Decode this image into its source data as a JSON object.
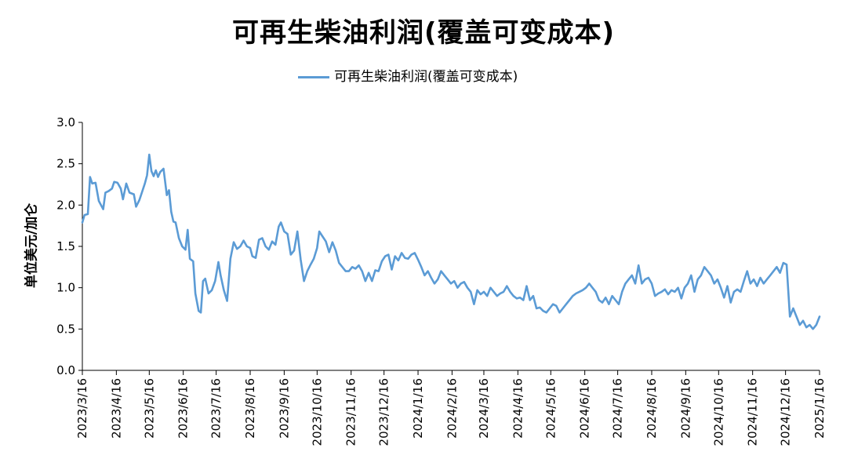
{
  "chart_data": {
    "type": "line",
    "title": "可再生柴油利润(覆盖可变成本)",
    "ylabel": "单位美元/加仑",
    "xlabel": "",
    "ylim": [
      0,
      3
    ],
    "yticks": [
      "0.0",
      "0.5",
      "1.0",
      "1.5",
      "2.0",
      "2.5",
      "3.0"
    ],
    "xticks": [
      "2023/3/16",
      "2023/4/16",
      "2023/5/16",
      "2023/6/16",
      "2023/7/16",
      "2023/8/16",
      "2023/9/16",
      "2023/10/16",
      "2023/11/16",
      "2023/12/16",
      "2024/1/16",
      "2024/2/16",
      "2024/3/16",
      "2024/4/16",
      "2024/5/16",
      "2024/6/16",
      "2024/7/16",
      "2024/8/16",
      "2024/9/16",
      "2024/10/16",
      "2024/11/16",
      "2024/12/16",
      "2025/1/16"
    ],
    "legend_position": "top-center",
    "grid": false,
    "series": [
      {
        "name": "可再生柴油利润(覆盖可变成本)",
        "color": "#5b9bd5",
        "points": [
          [
            "2023-03-16",
            1.79
          ],
          [
            "2023-03-18",
            1.88
          ],
          [
            "2023-03-21",
            1.89
          ],
          [
            "2023-03-23",
            2.34
          ],
          [
            "2023-03-25",
            2.26
          ],
          [
            "2023-03-28",
            2.27
          ],
          [
            "2023-03-31",
            2.05
          ],
          [
            "2023-04-04",
            1.95
          ],
          [
            "2023-04-06",
            2.15
          ],
          [
            "2023-04-09",
            2.17
          ],
          [
            "2023-04-12",
            2.2
          ],
          [
            "2023-04-14",
            2.28
          ],
          [
            "2023-04-17",
            2.27
          ],
          [
            "2023-04-20",
            2.2
          ],
          [
            "2023-04-22",
            2.07
          ],
          [
            "2023-04-25",
            2.26
          ],
          [
            "2023-04-28",
            2.15
          ],
          [
            "2023-05-02",
            2.13
          ],
          [
            "2023-05-04",
            1.98
          ],
          [
            "2023-05-07",
            2.06
          ],
          [
            "2023-05-09",
            2.14
          ],
          [
            "2023-05-12",
            2.26
          ],
          [
            "2023-05-14",
            2.36
          ],
          [
            "2023-05-16",
            2.61
          ],
          [
            "2023-05-18",
            2.41
          ],
          [
            "2023-05-20",
            2.35
          ],
          [
            "2023-05-22",
            2.42
          ],
          [
            "2023-05-24",
            2.34
          ],
          [
            "2023-05-26",
            2.4
          ],
          [
            "2023-05-29",
            2.44
          ],
          [
            "2023-06-01",
            2.12
          ],
          [
            "2023-06-03",
            2.18
          ],
          [
            "2023-06-05",
            1.92
          ],
          [
            "2023-06-07",
            1.8
          ],
          [
            "2023-06-09",
            1.79
          ],
          [
            "2023-06-12",
            1.6
          ],
          [
            "2023-06-15",
            1.5
          ],
          [
            "2023-06-18",
            1.46
          ],
          [
            "2023-06-20",
            1.7
          ],
          [
            "2023-06-22",
            1.35
          ],
          [
            "2023-06-25",
            1.32
          ],
          [
            "2023-06-27",
            0.93
          ],
          [
            "2023-06-30",
            0.72
          ],
          [
            "2023-07-02",
            0.7
          ],
          [
            "2023-07-04",
            1.08
          ],
          [
            "2023-07-06",
            1.11
          ],
          [
            "2023-07-09",
            0.93
          ],
          [
            "2023-07-12",
            0.97
          ],
          [
            "2023-07-15",
            1.08
          ],
          [
            "2023-07-18",
            1.31
          ],
          [
            "2023-07-20",
            1.15
          ],
          [
            "2023-07-23",
            0.97
          ],
          [
            "2023-07-26",
            0.84
          ],
          [
            "2023-07-29",
            1.35
          ],
          [
            "2023-08-01",
            1.55
          ],
          [
            "2023-08-04",
            1.47
          ],
          [
            "2023-08-07",
            1.5
          ],
          [
            "2023-08-10",
            1.57
          ],
          [
            "2023-08-13",
            1.5
          ],
          [
            "2023-08-16",
            1.48
          ],
          [
            "2023-08-18",
            1.38
          ],
          [
            "2023-08-21",
            1.36
          ],
          [
            "2023-08-24",
            1.58
          ],
          [
            "2023-08-27",
            1.6
          ],
          [
            "2023-08-30",
            1.5
          ],
          [
            "2023-09-02",
            1.46
          ],
          [
            "2023-09-05",
            1.56
          ],
          [
            "2023-09-08",
            1.52
          ],
          [
            "2023-09-11",
            1.74
          ],
          [
            "2023-09-13",
            1.79
          ],
          [
            "2023-09-16",
            1.68
          ],
          [
            "2023-09-19",
            1.65
          ],
          [
            "2023-09-22",
            1.4
          ],
          [
            "2023-09-25",
            1.45
          ],
          [
            "2023-09-28",
            1.68
          ],
          [
            "2023-10-01",
            1.34
          ],
          [
            "2023-10-04",
            1.08
          ],
          [
            "2023-10-07",
            1.2
          ],
          [
            "2023-10-10",
            1.28
          ],
          [
            "2023-10-13",
            1.35
          ],
          [
            "2023-10-16",
            1.48
          ],
          [
            "2023-10-18",
            1.68
          ],
          [
            "2023-10-21",
            1.62
          ],
          [
            "2023-10-24",
            1.56
          ],
          [
            "2023-10-27",
            1.43
          ],
          [
            "2023-10-30",
            1.55
          ],
          [
            "2023-11-02",
            1.45
          ],
          [
            "2023-11-05",
            1.3
          ],
          [
            "2023-11-08",
            1.25
          ],
          [
            "2023-11-11",
            1.2
          ],
          [
            "2023-11-14",
            1.2
          ],
          [
            "2023-11-17",
            1.25
          ],
          [
            "2023-11-20",
            1.23
          ],
          [
            "2023-11-23",
            1.27
          ],
          [
            "2023-11-26",
            1.2
          ],
          [
            "2023-11-29",
            1.08
          ],
          [
            "2023-12-02",
            1.18
          ],
          [
            "2023-12-05",
            1.08
          ],
          [
            "2023-12-08",
            1.21
          ],
          [
            "2023-12-11",
            1.2
          ],
          [
            "2023-12-14",
            1.32
          ],
          [
            "2023-12-17",
            1.38
          ],
          [
            "2023-12-20",
            1.4
          ],
          [
            "2023-12-23",
            1.22
          ],
          [
            "2023-12-26",
            1.38
          ],
          [
            "2023-12-29",
            1.33
          ],
          [
            "2024-01-01",
            1.42
          ],
          [
            "2024-01-04",
            1.36
          ],
          [
            "2024-01-07",
            1.35
          ],
          [
            "2024-01-10",
            1.4
          ],
          [
            "2024-01-13",
            1.42
          ],
          [
            "2024-01-16",
            1.34
          ],
          [
            "2024-01-19",
            1.25
          ],
          [
            "2024-01-22",
            1.15
          ],
          [
            "2024-01-25",
            1.2
          ],
          [
            "2024-01-28",
            1.12
          ],
          [
            "2024-01-31",
            1.05
          ],
          [
            "2024-02-03",
            1.1
          ],
          [
            "2024-02-06",
            1.2
          ],
          [
            "2024-02-09",
            1.15
          ],
          [
            "2024-02-12",
            1.1
          ],
          [
            "2024-02-15",
            1.05
          ],
          [
            "2024-02-18",
            1.08
          ],
          [
            "2024-02-21",
            1.0
          ],
          [
            "2024-02-24",
            1.05
          ],
          [
            "2024-02-27",
            1.07
          ],
          [
            "2024-03-01",
            1.0
          ],
          [
            "2024-03-04",
            0.95
          ],
          [
            "2024-03-07",
            0.8
          ],
          [
            "2024-03-10",
            0.97
          ],
          [
            "2024-03-13",
            0.92
          ],
          [
            "2024-03-16",
            0.95
          ],
          [
            "2024-03-19",
            0.9
          ],
          [
            "2024-03-22",
            1.0
          ],
          [
            "2024-03-25",
            0.95
          ],
          [
            "2024-03-28",
            0.9
          ],
          [
            "2024-03-31",
            0.93
          ],
          [
            "2024-04-03",
            0.95
          ],
          [
            "2024-04-06",
            1.02
          ],
          [
            "2024-04-09",
            0.95
          ],
          [
            "2024-04-12",
            0.9
          ],
          [
            "2024-04-15",
            0.87
          ],
          [
            "2024-04-18",
            0.88
          ],
          [
            "2024-04-21",
            0.85
          ],
          [
            "2024-04-24",
            1.02
          ],
          [
            "2024-04-27",
            0.85
          ],
          [
            "2024-04-30",
            0.9
          ],
          [
            "2024-05-03",
            0.75
          ],
          [
            "2024-05-06",
            0.76
          ],
          [
            "2024-05-09",
            0.72
          ],
          [
            "2024-05-12",
            0.7
          ],
          [
            "2024-05-15",
            0.75
          ],
          [
            "2024-05-18",
            0.8
          ],
          [
            "2024-05-21",
            0.78
          ],
          [
            "2024-05-24",
            0.7
          ],
          [
            "2024-05-27",
            0.75
          ],
          [
            "2024-05-30",
            0.8
          ],
          [
            "2024-06-02",
            0.85
          ],
          [
            "2024-06-05",
            0.9
          ],
          [
            "2024-06-08",
            0.93
          ],
          [
            "2024-06-11",
            0.95
          ],
          [
            "2024-06-14",
            0.97
          ],
          [
            "2024-06-17",
            1.0
          ],
          [
            "2024-06-20",
            1.05
          ],
          [
            "2024-06-23",
            1.0
          ],
          [
            "2024-06-26",
            0.95
          ],
          [
            "2024-06-29",
            0.85
          ],
          [
            "2024-07-02",
            0.82
          ],
          [
            "2024-07-05",
            0.88
          ],
          [
            "2024-07-08",
            0.8
          ],
          [
            "2024-07-11",
            0.9
          ],
          [
            "2024-07-14",
            0.85
          ],
          [
            "2024-07-17",
            0.8
          ],
          [
            "2024-07-20",
            0.95
          ],
          [
            "2024-07-23",
            1.05
          ],
          [
            "2024-07-26",
            1.1
          ],
          [
            "2024-07-29",
            1.15
          ],
          [
            "2024-08-01",
            1.05
          ],
          [
            "2024-08-04",
            1.27
          ],
          [
            "2024-08-07",
            1.05
          ],
          [
            "2024-08-10",
            1.1
          ],
          [
            "2024-08-13",
            1.12
          ],
          [
            "2024-08-16",
            1.05
          ],
          [
            "2024-08-19",
            0.9
          ],
          [
            "2024-08-22",
            0.93
          ],
          [
            "2024-08-25",
            0.95
          ],
          [
            "2024-08-28",
            0.98
          ],
          [
            "2024-08-31",
            0.92
          ],
          [
            "2024-09-03",
            0.97
          ],
          [
            "2024-09-06",
            0.95
          ],
          [
            "2024-09-09",
            1.0
          ],
          [
            "2024-09-12",
            0.87
          ],
          [
            "2024-09-15",
            1.0
          ],
          [
            "2024-09-18",
            1.05
          ],
          [
            "2024-09-21",
            1.15
          ],
          [
            "2024-09-24",
            0.95
          ],
          [
            "2024-09-27",
            1.1
          ],
          [
            "2024-09-30",
            1.15
          ],
          [
            "2024-10-03",
            1.25
          ],
          [
            "2024-10-06",
            1.2
          ],
          [
            "2024-10-09",
            1.15
          ],
          [
            "2024-10-12",
            1.05
          ],
          [
            "2024-10-15",
            1.1
          ],
          [
            "2024-10-18",
            1.0
          ],
          [
            "2024-10-21",
            0.88
          ],
          [
            "2024-10-24",
            1.02
          ],
          [
            "2024-10-27",
            0.82
          ],
          [
            "2024-10-30",
            0.95
          ],
          [
            "2024-11-02",
            0.98
          ],
          [
            "2024-11-05",
            0.95
          ],
          [
            "2024-11-08",
            1.08
          ],
          [
            "2024-11-11",
            1.2
          ],
          [
            "2024-11-14",
            1.05
          ],
          [
            "2024-11-17",
            1.1
          ],
          [
            "2024-11-20",
            1.02
          ],
          [
            "2024-11-23",
            1.12
          ],
          [
            "2024-11-26",
            1.05
          ],
          [
            "2024-11-29",
            1.1
          ],
          [
            "2024-12-02",
            1.15
          ],
          [
            "2024-12-05",
            1.2
          ],
          [
            "2024-12-08",
            1.25
          ],
          [
            "2024-12-11",
            1.18
          ],
          [
            "2024-12-14",
            1.3
          ],
          [
            "2024-12-17",
            1.28
          ],
          [
            "2024-12-20",
            0.65
          ],
          [
            "2024-12-23",
            0.75
          ],
          [
            "2024-12-26",
            0.65
          ],
          [
            "2024-12-29",
            0.55
          ],
          [
            "2025-01-01",
            0.6
          ],
          [
            "2025-01-04",
            0.52
          ],
          [
            "2025-01-07",
            0.55
          ],
          [
            "2025-01-10",
            0.5
          ],
          [
            "2025-01-13",
            0.55
          ],
          [
            "2025-01-16",
            0.65
          ]
        ]
      }
    ]
  }
}
